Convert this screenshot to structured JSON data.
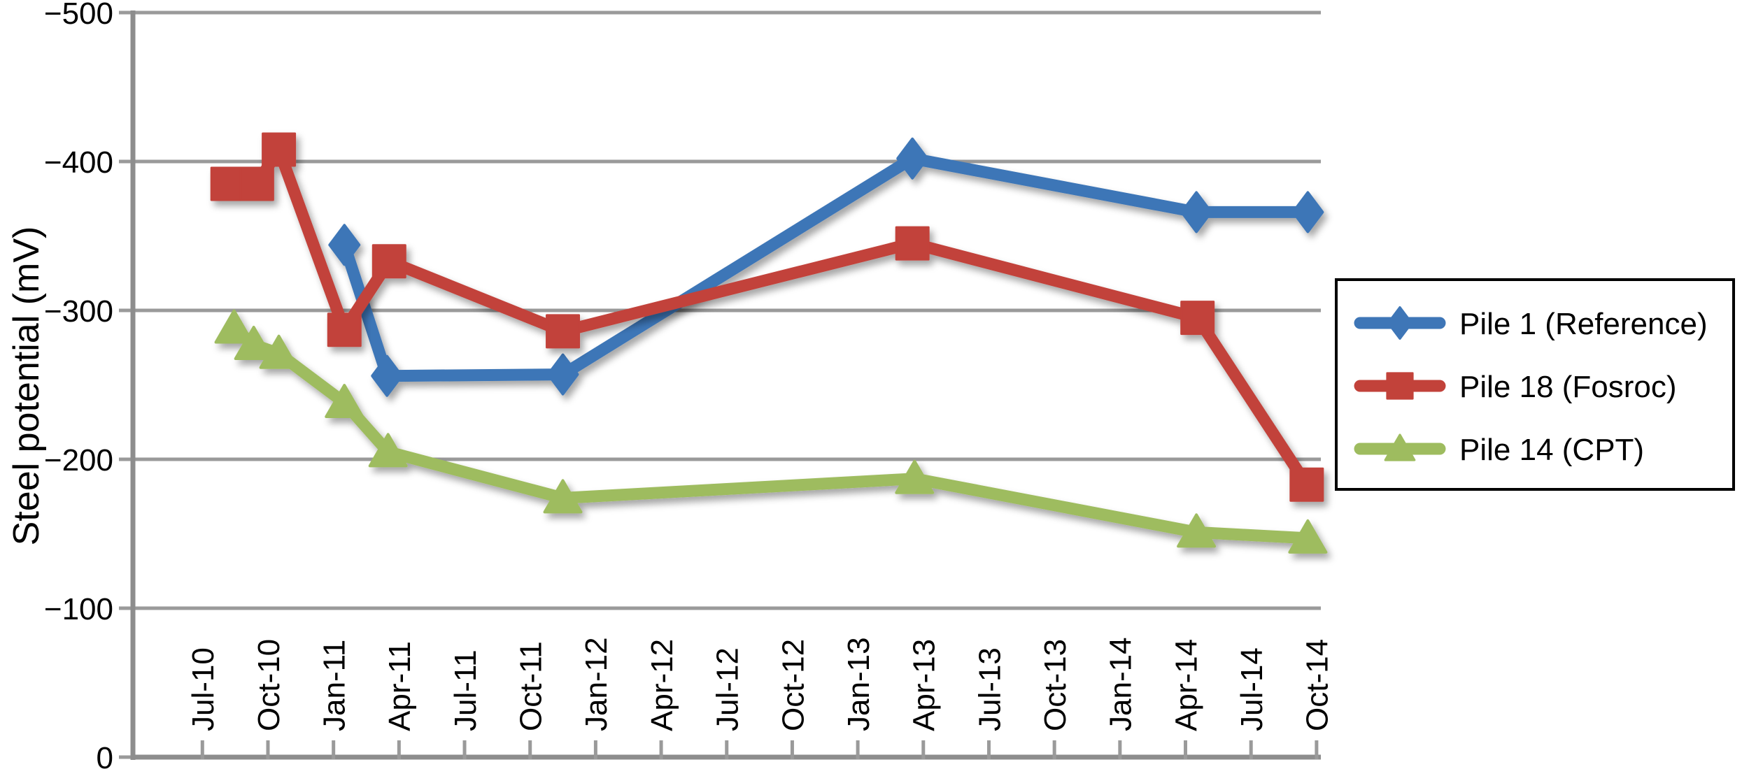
{
  "page": {
    "background": "#FFFFFF"
  },
  "chart_data": {
    "type": "line",
    "title": "",
    "ylabel": "Steel potential (mV)",
    "xlabel": "",
    "y_axis": {
      "inverted": true,
      "top_value": -500,
      "bottom_value": 0,
      "tick_step": 100,
      "tick_values": [
        -500,
        -400,
        -300,
        -200,
        -100,
        0
      ],
      "tick_labels": [
        "−500",
        "−400",
        "−300",
        "−200",
        "−100",
        "0"
      ]
    },
    "x_axis": {
      "unit": "months_after_Jul-2010",
      "tick_months": [
        0,
        3,
        6,
        9,
        12,
        15,
        18,
        21,
        24,
        27,
        30,
        33,
        36,
        39,
        42,
        45,
        48,
        51
      ],
      "tick_labels": [
        "Jul-10",
        "Oct-10",
        "Jan-11",
        "Apr-11",
        "Jul-11",
        "Oct-11",
        "Jan-12",
        "Apr-12",
        "Jul-12",
        "Oct-12",
        "Jan-13",
        "Apr-13",
        "Jul-13",
        "Oct-13",
        "Jan-14",
        "Apr-14",
        "Jul-14",
        "Oct-14"
      ]
    },
    "grid": "horizontal",
    "legend_position": "right",
    "axis_color": "#8D8D8D",
    "grid_color": "#9A9A9A",
    "text_color": "#000000",
    "series": [
      {
        "name": "Pile 1 (Reference)",
        "color": "#3E76B7",
        "marker": "diamond",
        "points": [
          [
            6.5,
            -344
          ],
          [
            8.45,
            -256
          ],
          [
            16.5,
            -257
          ],
          [
            32.5,
            -402
          ],
          [
            45.5,
            -366
          ],
          [
            50.6,
            -366
          ]
        ]
      },
      {
        "name": "Pile 18 (Fosroc)",
        "color": "#C2423A",
        "marker": "square",
        "points": [
          [
            1.15,
            -385
          ],
          [
            2.5,
            -385
          ],
          [
            3.5,
            -408
          ],
          [
            6.5,
            -287
          ],
          [
            8.55,
            -333
          ],
          [
            16.5,
            -286
          ],
          [
            32.5,
            -345
          ],
          [
            45.55,
            -295
          ],
          [
            50.55,
            -183
          ]
        ]
      },
      {
        "name": "Pile 14 (CPT)",
        "color": "#9EBC5F",
        "marker": "triangle",
        "points": [
          [
            1.45,
            -288
          ],
          [
            2.35,
            -277
          ],
          [
            3.5,
            -271
          ],
          [
            6.5,
            -238
          ],
          [
            8.5,
            -205
          ],
          [
            16.5,
            -174
          ],
          [
            32.6,
            -187
          ],
          [
            45.5,
            -151
          ],
          [
            50.6,
            -147
          ]
        ]
      }
    ]
  }
}
